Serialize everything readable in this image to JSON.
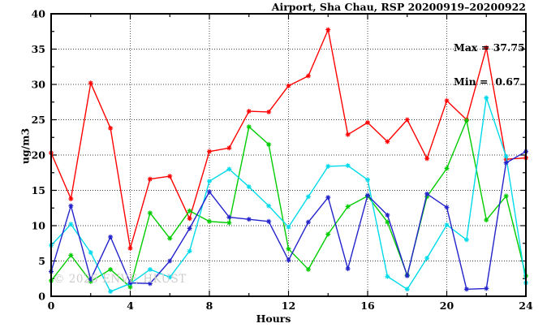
{
  "header": {
    "title": "Airport, Sha Chau, RSP 20200919–20200922"
  },
  "stats": {
    "max_label": "Max = 37.75",
    "min_label": "Min =  0.67"
  },
  "watermark": "© 2026 ENVF, HKUST",
  "chart_data": {
    "type": "line",
    "title": "Airport, Sha Chau, RSP 20200919–20200922",
    "xlabel": "Hours",
    "ylabel": "ug/m3",
    "xlim": [
      0,
      24
    ],
    "ylim": [
      0,
      40
    ],
    "x_major_ticks": [
      0,
      4,
      8,
      12,
      16,
      20,
      24
    ],
    "x_minor_step": 2,
    "y_major_ticks": [
      0,
      5,
      10,
      15,
      20,
      25,
      30,
      35,
      40
    ],
    "y_minor_step": 2.5,
    "grid": true,
    "legend_position": "none",
    "stat_max": 37.75,
    "stat_min": 0.67,
    "grid_color": "#404040",
    "x": [
      0,
      1,
      2,
      3,
      4,
      5,
      6,
      7,
      8,
      9,
      10,
      11,
      12,
      13,
      14,
      15,
      16,
      17,
      18,
      19,
      20,
      21,
      22,
      23,
      24
    ],
    "series": [
      {
        "name": "red-line",
        "color": "#ff0000",
        "values": [
          20.3,
          13.8,
          30.2,
          23.8,
          6.8,
          16.6,
          17.0,
          11.0,
          20.5,
          21.0,
          26.2,
          26.1,
          29.8,
          31.2,
          37.75,
          22.9,
          24.6,
          21.9,
          25.0,
          19.5,
          27.7,
          25.0,
          35.2,
          19.4,
          19.6
        ]
      },
      {
        "name": "green-line",
        "color": "#00cc00",
        "values": [
          2.2,
          5.8,
          2.1,
          3.8,
          1.3,
          11.8,
          8.2,
          12.1,
          10.6,
          10.4,
          24.0,
          21.5,
          6.7,
          3.8,
          8.8,
          12.7,
          14.2,
          10.5,
          3.0,
          14.1,
          18.1,
          24.9,
          10.8,
          14.2,
          2.9
        ]
      },
      {
        "name": "cyan-line",
        "color": "#00daea",
        "values": [
          7.2,
          10.2,
          6.2,
          0.67,
          1.8,
          3.8,
          2.7,
          6.4,
          16.3,
          18.0,
          15.5,
          12.8,
          9.8,
          14.1,
          18.4,
          18.5,
          16.5,
          2.8,
          1.0,
          5.4,
          10.1,
          8.0,
          28.1,
          19.8,
          1.9
        ]
      },
      {
        "name": "blue-line",
        "color": "#2323cc",
        "values": [
          3.5,
          12.8,
          2.4,
          8.4,
          1.9,
          1.8,
          5.0,
          9.6,
          14.8,
          11.2,
          10.9,
          10.6,
          5.1,
          10.5,
          14.0,
          3.9,
          14.3,
          11.5,
          2.9,
          14.5,
          12.6,
          1.0,
          1.1,
          18.9,
          20.5
        ]
      }
    ]
  }
}
